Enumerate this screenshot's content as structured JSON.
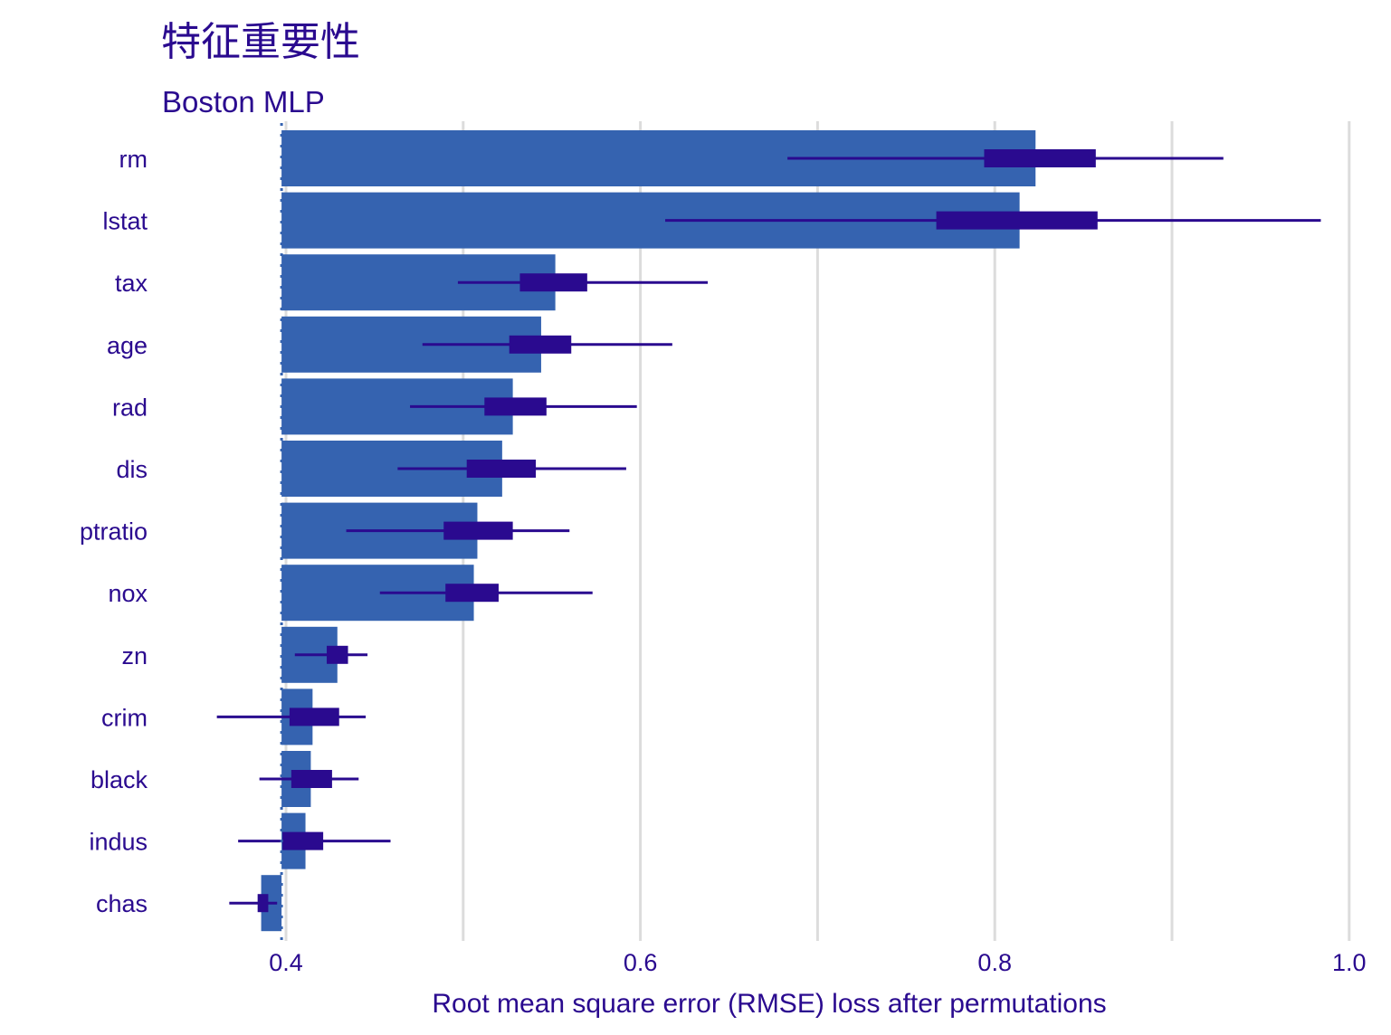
{
  "title": "特征重要性",
  "subtitle": "Boston MLP",
  "chart_data": {
    "type": "bar",
    "orientation": "horizontal",
    "xlabel": "Root mean square error (RMSE) loss after permutations",
    "xlim": [
      0.33,
      1.0
    ],
    "xticks": [
      0.4,
      0.6,
      0.8,
      1.0
    ],
    "xtick_labels": [
      "0.4",
      "0.6",
      "0.8",
      "1.0"
    ],
    "baseline": 0.3975,
    "grid": true,
    "colors": {
      "bar": "#3563b0",
      "box": "#2a0a8f",
      "grid": "#dcdcdc",
      "text": "#2a0a8f"
    },
    "categories": [
      "rm",
      "lstat",
      "tax",
      "age",
      "rad",
      "dis",
      "ptratio",
      "nox",
      "zn",
      "crim",
      "black",
      "indus",
      "chas"
    ],
    "values": [
      0.823,
      0.814,
      0.552,
      0.544,
      0.528,
      0.522,
      0.508,
      0.506,
      0.429,
      0.415,
      0.414,
      0.411,
      0.386
    ],
    "boxplots": [
      {
        "min": 0.683,
        "q1": 0.794,
        "q3": 0.857,
        "max": 0.929
      },
      {
        "min": 0.614,
        "q1": 0.767,
        "q3": 0.858,
        "max": 0.984
      },
      {
        "min": 0.497,
        "q1": 0.532,
        "q3": 0.57,
        "max": 0.638
      },
      {
        "min": 0.477,
        "q1": 0.526,
        "q3": 0.561,
        "max": 0.618
      },
      {
        "min": 0.47,
        "q1": 0.512,
        "q3": 0.547,
        "max": 0.598
      },
      {
        "min": 0.463,
        "q1": 0.502,
        "q3": 0.541,
        "max": 0.592
      },
      {
        "min": 0.434,
        "q1": 0.489,
        "q3": 0.528,
        "max": 0.56
      },
      {
        "min": 0.453,
        "q1": 0.49,
        "q3": 0.52,
        "max": 0.573
      },
      {
        "min": 0.405,
        "q1": 0.423,
        "q3": 0.435,
        "max": 0.446
      },
      {
        "min": 0.361,
        "q1": 0.402,
        "q3": 0.43,
        "max": 0.445
      },
      {
        "min": 0.385,
        "q1": 0.403,
        "q3": 0.426,
        "max": 0.441
      },
      {
        "min": 0.373,
        "q1": 0.398,
        "q3": 0.421,
        "max": 0.459
      },
      {
        "min": 0.368,
        "q1": 0.384,
        "q3": 0.39,
        "max": 0.395
      }
    ]
  }
}
